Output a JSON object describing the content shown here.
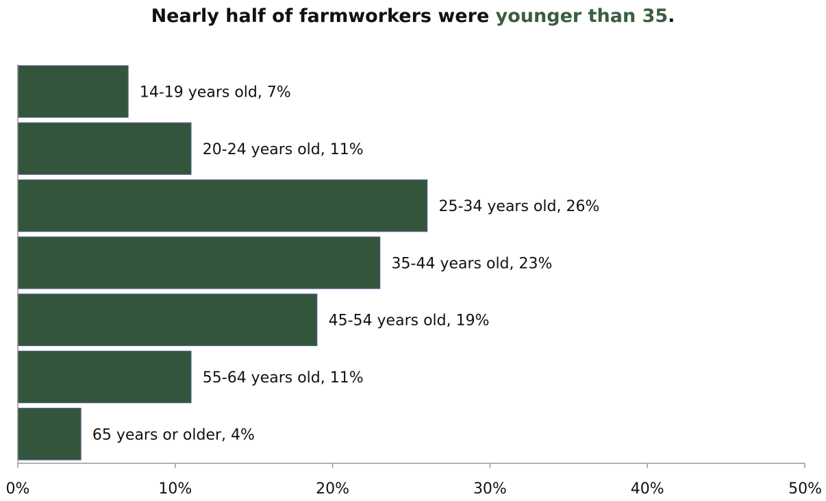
{
  "title": {
    "prefix": "Nearly half of farmworkers were ",
    "highlight": "younger than 35",
    "suffix": "."
  },
  "colors": {
    "bar_fill": "#33553b",
    "bar_stroke": "#4a5a78",
    "highlight_text": "#3b5d42",
    "axis": "#999999",
    "text": "#111111"
  },
  "chart_data": {
    "type": "bar",
    "orientation": "horizontal",
    "title": "Nearly half of farmworkers were younger than 35.",
    "categories": [
      "14-19 years old",
      "20-24 years old",
      "25-34 years old",
      "35-44 years old",
      "45-54 years old",
      "55-64 years old",
      "65 years or older"
    ],
    "values": [
      7,
      11,
      26,
      23,
      19,
      11,
      4
    ],
    "data_labels": [
      "14-19 years old, 7%",
      "20-24 years old, 11%",
      "25-34 years old, 26%",
      "35-44 years old, 23%",
      "45-54 years old, 19%",
      "55-64 years old, 11%",
      "65 years or older, 4%"
    ],
    "xlim": [
      0,
      50
    ],
    "xticks": [
      0,
      10,
      20,
      30,
      40,
      50
    ],
    "xtick_labels": [
      "0%",
      "10%",
      "20%",
      "30%",
      "40%",
      "50%"
    ],
    "xlabel": "",
    "ylabel": "",
    "grid": false,
    "legend": false
  }
}
